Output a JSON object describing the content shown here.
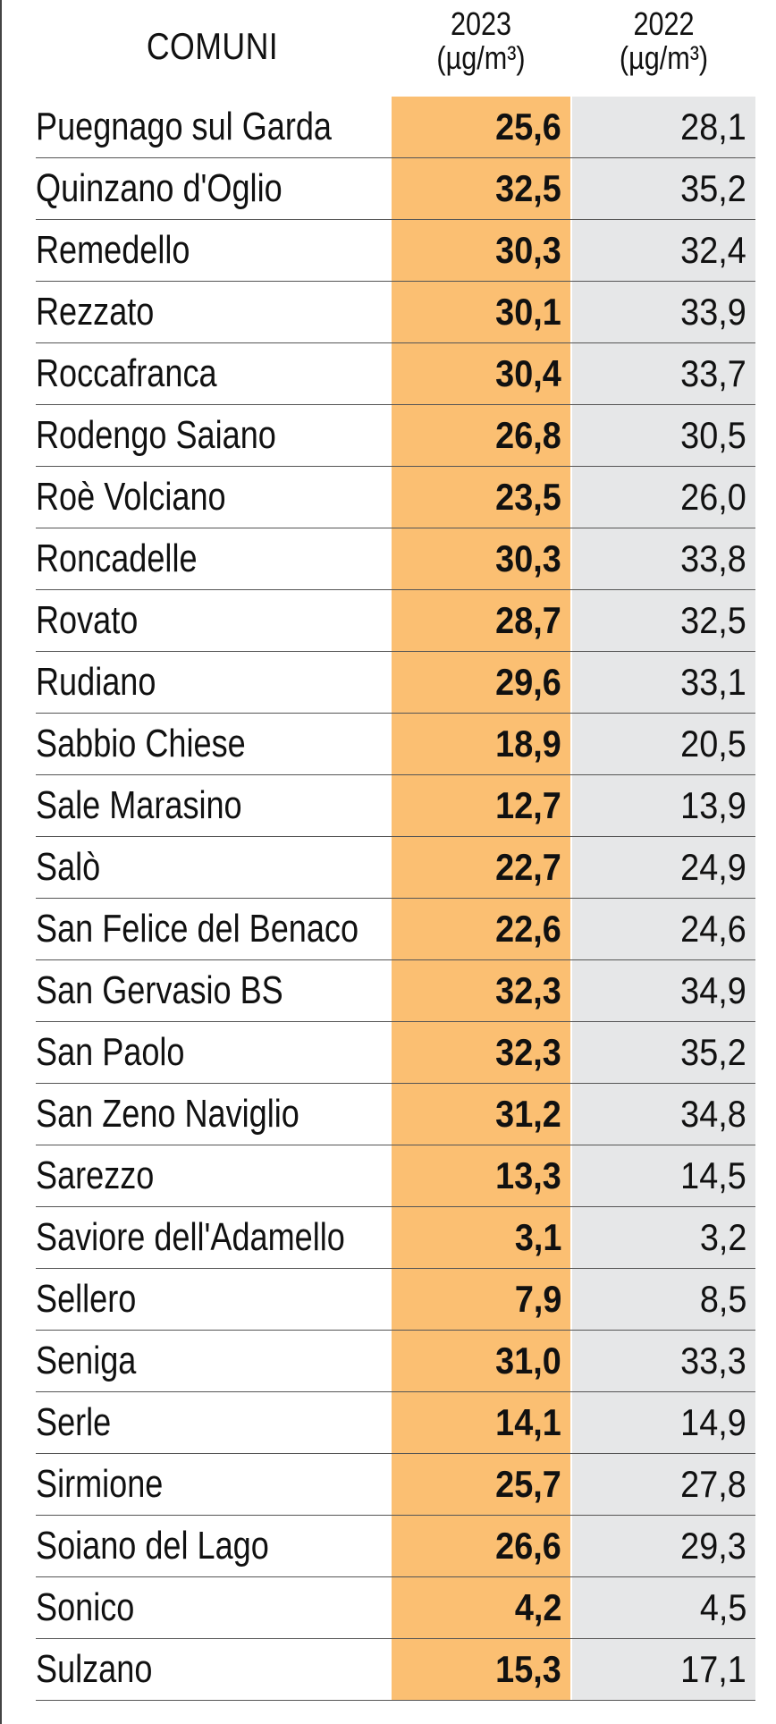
{
  "header": {
    "comuni": "COMUNI",
    "year_2023": "2023",
    "year_2022": "2022",
    "unit": "(µg/m³)"
  },
  "colors": {
    "col_2023_bg": "#fbbf72",
    "col_2022_bg": "#e6e7e8"
  },
  "chart_data": {
    "type": "table",
    "columns": [
      "COMUNI",
      "2023 (µg/m³)",
      "2022 (µg/m³)"
    ],
    "rows": [
      {
        "name": "Puegnago sul Garda",
        "v2023": "25,6",
        "v2022": "28,1"
      },
      {
        "name": "Quinzano d'Oglio",
        "v2023": "32,5",
        "v2022": "35,2"
      },
      {
        "name": "Remedello",
        "v2023": "30,3",
        "v2022": "32,4"
      },
      {
        "name": "Rezzato",
        "v2023": "30,1",
        "v2022": "33,9"
      },
      {
        "name": "Roccafranca",
        "v2023": "30,4",
        "v2022": "33,7"
      },
      {
        "name": "Rodengo Saiano",
        "v2023": "26,8",
        "v2022": "30,5"
      },
      {
        "name": "Roè Volciano",
        "v2023": "23,5",
        "v2022": "26,0"
      },
      {
        "name": "Roncadelle",
        "v2023": "30,3",
        "v2022": "33,8"
      },
      {
        "name": "Rovato",
        "v2023": "28,7",
        "v2022": "32,5"
      },
      {
        "name": "Rudiano",
        "v2023": "29,6",
        "v2022": "33,1"
      },
      {
        "name": "Sabbio Chiese",
        "v2023": "18,9",
        "v2022": "20,5"
      },
      {
        "name": "Sale Marasino",
        "v2023": "12,7",
        "v2022": "13,9"
      },
      {
        "name": "Salò",
        "v2023": "22,7",
        "v2022": "24,9"
      },
      {
        "name": "San Felice del Benaco",
        "v2023": "22,6",
        "v2022": "24,6"
      },
      {
        "name": "San Gervasio BS",
        "v2023": "32,3",
        "v2022": "34,9"
      },
      {
        "name": "San Paolo",
        "v2023": "32,3",
        "v2022": "35,2"
      },
      {
        "name": "San Zeno Naviglio",
        "v2023": "31,2",
        "v2022": "34,8"
      },
      {
        "name": "Sarezzo",
        "v2023": "13,3",
        "v2022": "14,5"
      },
      {
        "name": "Saviore dell'Adamello",
        "v2023": "3,1",
        "v2022": "3,2"
      },
      {
        "name": "Sellero",
        "v2023": "7,9",
        "v2022": "8,5"
      },
      {
        "name": "Seniga",
        "v2023": "31,0",
        "v2022": "33,3"
      },
      {
        "name": "Serle",
        "v2023": "14,1",
        "v2022": "14,9"
      },
      {
        "name": "Sirmione",
        "v2023": "25,7",
        "v2022": "27,8"
      },
      {
        "name": "Soiano del Lago",
        "v2023": "26,6",
        "v2022": "29,3"
      },
      {
        "name": "Sonico",
        "v2023": "4,2",
        "v2022": "4,5"
      },
      {
        "name": "Sulzano",
        "v2023": "15,3",
        "v2022": "17,1"
      }
    ]
  }
}
